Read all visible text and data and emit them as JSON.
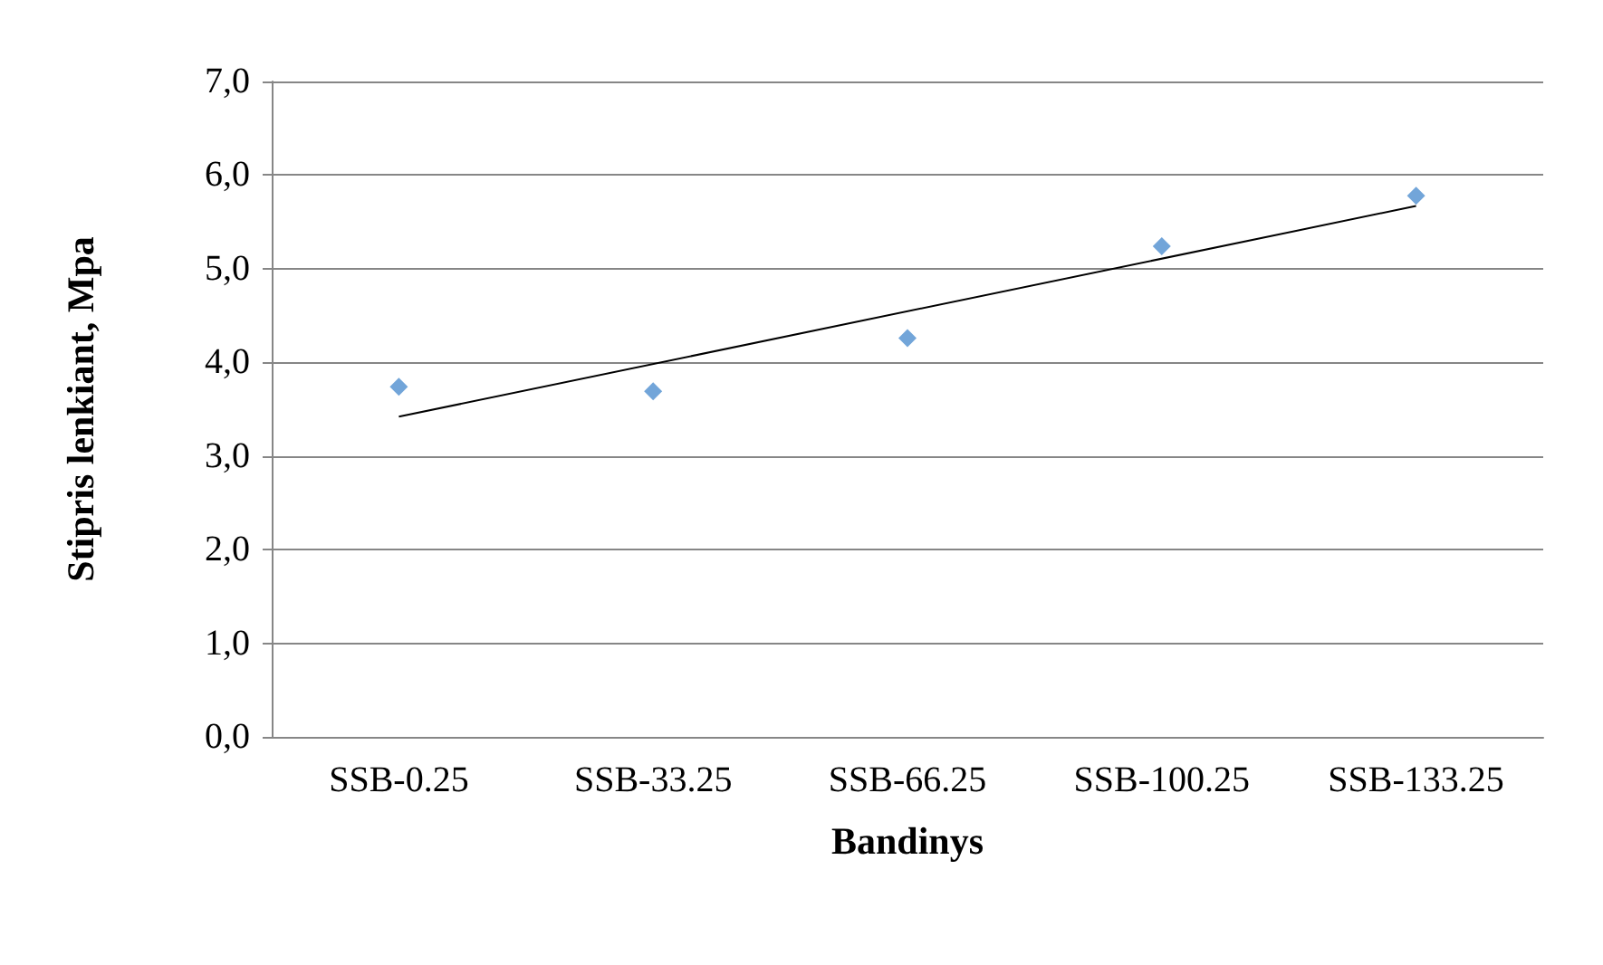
{
  "chart_data": {
    "type": "scatter",
    "xlabel": "Bandinys",
    "ylabel": "Stipris lenkiant, Mpa",
    "categories": [
      "SSB-0.25",
      "SSB-33.25",
      "SSB-66.25",
      "SSB-100.25",
      "SSB-133.25"
    ],
    "series": [
      {
        "color": "#4f8fd0",
        "marker": "diamond",
        "values": [
          3.74,
          3.69,
          4.26,
          5.24,
          5.78
        ]
      },
      {
        "type": "line",
        "color": "#000000",
        "marker": "none",
        "line_style": "solid",
        "x": [
          "SSB-0.25",
          "SSB-133.25"
        ],
        "values": [
          3.42,
          5.67
        ]
      }
    ],
    "ylim": [
      0,
      7
    ],
    "yticks": [
      {
        "value": 0,
        "label": "0,0"
      },
      {
        "value": 1,
        "label": "1,0"
      },
      {
        "value": 2,
        "label": "2,0"
      },
      {
        "value": 3,
        "label": "3,0"
      },
      {
        "value": 4,
        "label": "4,0"
      },
      {
        "value": 5,
        "label": "5,0"
      },
      {
        "value": 6,
        "label": "6,0"
      },
      {
        "value": 7,
        "label": "7,0"
      }
    ],
    "grid": "y"
  }
}
